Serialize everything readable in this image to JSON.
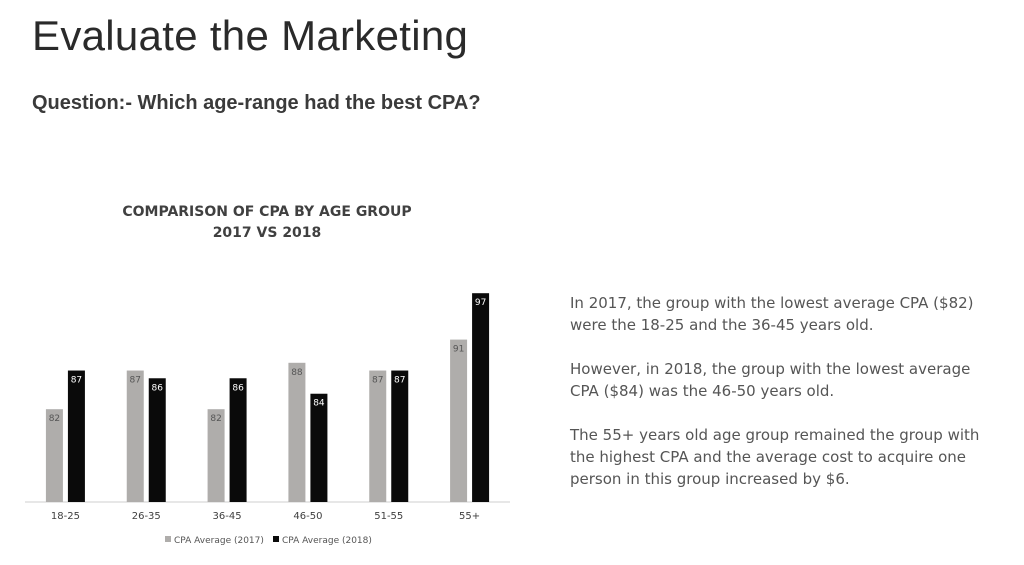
{
  "slide": {
    "title": "Evaluate the Marketing",
    "question": "Question:- Which age-range had the best CPA?"
  },
  "chart_data": {
    "type": "bar",
    "title": "COMPARISON OF CPA BY AGE GROUP",
    "subtitle": "2017 VS 2018",
    "categories": [
      "18-25",
      "26-35",
      "36-45",
      "46-50",
      "51-55",
      "55+"
    ],
    "series": [
      {
        "name": "CPA Average (2017)",
        "color": "#afadab",
        "values": [
          82,
          87,
          82,
          88,
          87,
          91
        ]
      },
      {
        "name": "CPA Average (2018)",
        "color": "#0a0a0a",
        "values": [
          87,
          86,
          86,
          84,
          87,
          97
        ]
      }
    ],
    "ylim": [
      70,
      100
    ],
    "grid": false,
    "legend": "bottom",
    "data_labels": true
  },
  "notes": [
    "In 2017, the group with the lowest average CPA ($82) were the 18-25 and the 36-45 years old.",
    "However, in 2018, the group with the lowest average CPA ($84) was the 46-50 years old.",
    "The 55+ years old age group remained the group with the highest CPA and the average cost to acquire one person in this group increased by $6."
  ]
}
